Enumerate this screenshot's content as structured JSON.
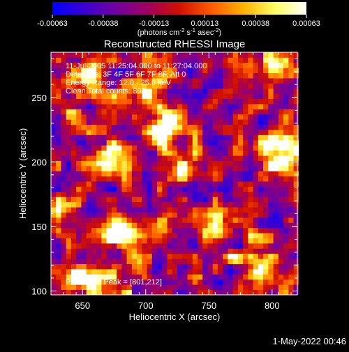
{
  "chart_data": {
    "type": "heatmap",
    "title": "Reconstructed RHESSI Image",
    "xlabel": "Heliocentric X (arcsec)",
    "ylabel": "Heliocentric Y (arcsec)",
    "xlim": [
      625,
      820
    ],
    "ylim": [
      97,
      285
    ],
    "xticks": [
      650,
      700,
      750,
      800
    ],
    "yticks": [
      100,
      150,
      200,
      250
    ],
    "colorbar": {
      "vmin": -0.00063,
      "vmax": 0.00063,
      "ticks": [
        "-0.00063",
        "-0.00038",
        "-0.00013",
        "0.00013",
        "0.00038",
        "0.00063"
      ],
      "units_prefix": "(photons cm",
      "units_exp1": "-2",
      "units_mid": " s",
      "units_exp2": "-1",
      "units_suffix": " asec",
      "units_exp3": "-2",
      "units_close": ")",
      "colors": [
        "#0000ff",
        "#3a00d0",
        "#7000a0",
        "#a00060",
        "#d01000",
        "#ff5a00",
        "#ffb000",
        "#ffff60",
        "#ffffff"
      ]
    },
    "annotations": [
      "11-Jul-2005 11:25:04.000 to 11:27:04.000",
      "Detectors: 3F 4F 5F 6F 7F 8F, Att 0",
      "Energy Range: 12.0 - 25.0 keV",
      "Clean     Total counts: 898."
    ],
    "peak_label": "Position of Peak = [801,212]",
    "peak": [
      801,
      212
    ],
    "bright_sources": [
      {
        "x": 717,
        "y": 232,
        "amp": 1.0
      },
      {
        "x": 801,
        "y": 212,
        "amp": 1.0
      },
      {
        "x": 681,
        "y": 147,
        "amp": 0.95
      },
      {
        "x": 657,
        "y": 268,
        "amp": 0.8
      },
      {
        "x": 805,
        "y": 272,
        "amp": 0.85
      },
      {
        "x": 668,
        "y": 200,
        "amp": 0.6
      },
      {
        "x": 755,
        "y": 150,
        "amp": 0.65
      },
      {
        "x": 790,
        "y": 120,
        "amp": 0.7
      },
      {
        "x": 725,
        "y": 195,
        "amp": 0.5
      },
      {
        "x": 645,
        "y": 110,
        "amp": 0.55
      }
    ]
  },
  "timestamp": "1-May-2022 00:46"
}
